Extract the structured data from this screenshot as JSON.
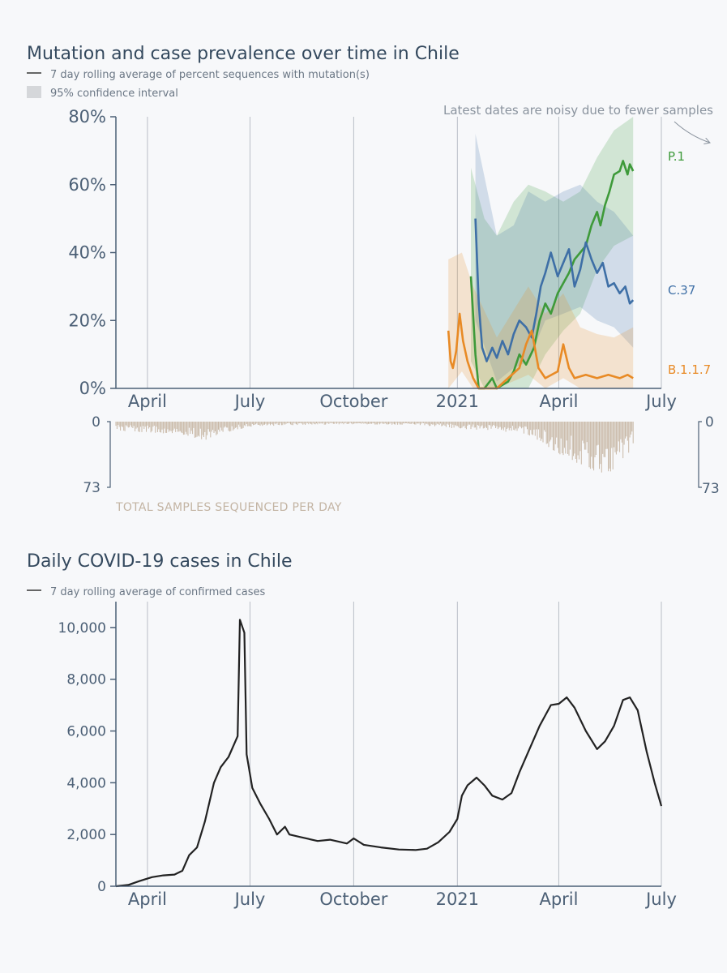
{
  "chart_data": [
    {
      "type": "line",
      "title": "Mutation and case prevalence over time in Chile",
      "legend": [
        "7 day rolling average of percent sequences with mutation(s)",
        "95% confidence interval"
      ],
      "x_ticks": [
        "April",
        "July",
        "October",
        "2021",
        "April",
        "July"
      ],
      "x_tick_dates": [
        "2020-04-01",
        "2020-07-01",
        "2020-10-01",
        "2021-01-01",
        "2021-04-01",
        "2021-07-01"
      ],
      "xlim": [
        "2020-03-04",
        "2021-07-01"
      ],
      "y_ticks": [
        "0%",
        "20%",
        "40%",
        "60%",
        "80%"
      ],
      "ylim": [
        0,
        80
      ],
      "y_unit": "%",
      "annotation": "Latest dates are noisy due to fewer samples",
      "grid": "vertical",
      "series": [
        {
          "name": "P.1",
          "color": "#3e9a3a",
          "points": [
            [
              "2021-01-13",
              33
            ],
            [
              "2021-01-17",
              10
            ],
            [
              "2021-01-20",
              0
            ],
            [
              "2021-01-25",
              0
            ],
            [
              "2021-02-01",
              3
            ],
            [
              "2021-02-05",
              0
            ],
            [
              "2021-02-10",
              1
            ],
            [
              "2021-02-15",
              2
            ],
            [
              "2021-02-20",
              5
            ],
            [
              "2021-02-25",
              10
            ],
            [
              "2021-03-03",
              7
            ],
            [
              "2021-03-10",
              12
            ],
            [
              "2021-03-15",
              20
            ],
            [
              "2021-03-20",
              25
            ],
            [
              "2021-03-25",
              22
            ],
            [
              "2021-03-31",
              28
            ],
            [
              "2021-04-05",
              31
            ],
            [
              "2021-04-10",
              34
            ],
            [
              "2021-04-15",
              38
            ],
            [
              "2021-04-20",
              40
            ],
            [
              "2021-04-25",
              42
            ],
            [
              "2021-04-30",
              48
            ],
            [
              "2021-05-05",
              52
            ],
            [
              "2021-05-08",
              48
            ],
            [
              "2021-05-12",
              54
            ],
            [
              "2021-05-16",
              58
            ],
            [
              "2021-05-20",
              63
            ],
            [
              "2021-05-25",
              64
            ],
            [
              "2021-05-28",
              67
            ],
            [
              "2021-06-01",
              63
            ],
            [
              "2021-06-03",
              66
            ],
            [
              "2021-06-06",
              64
            ]
          ],
          "ci": [
            [
              "2021-01-13",
              8,
              65
            ],
            [
              "2021-01-25",
              0,
              50
            ],
            [
              "2021-02-05",
              0,
              45
            ],
            [
              "2021-02-20",
              0,
              55
            ],
            [
              "2021-03-05",
              0,
              60
            ],
            [
              "2021-03-20",
              10,
              58
            ],
            [
              "2021-04-05",
              17,
              55
            ],
            [
              "2021-04-20",
              22,
              58
            ],
            [
              "2021-05-05",
              35,
              68
            ],
            [
              "2021-05-20",
              42,
              76
            ],
            [
              "2021-06-06",
              45,
              80
            ]
          ]
        },
        {
          "name": "C.37",
          "color": "#3e6fa6",
          "points": [
            [
              "2021-01-17",
              50
            ],
            [
              "2021-01-20",
              25
            ],
            [
              "2021-01-23",
              12
            ],
            [
              "2021-01-27",
              8
            ],
            [
              "2021-02-01",
              12
            ],
            [
              "2021-02-05",
              9
            ],
            [
              "2021-02-10",
              14
            ],
            [
              "2021-02-15",
              10
            ],
            [
              "2021-02-20",
              16
            ],
            [
              "2021-02-25",
              20
            ],
            [
              "2021-03-03",
              18
            ],
            [
              "2021-03-08",
              15
            ],
            [
              "2021-03-12",
              22
            ],
            [
              "2021-03-16",
              30
            ],
            [
              "2021-03-20",
              34
            ],
            [
              "2021-03-25",
              40
            ],
            [
              "2021-03-31",
              33
            ],
            [
              "2021-04-05",
              37
            ],
            [
              "2021-04-10",
              41
            ],
            [
              "2021-04-15",
              30
            ],
            [
              "2021-04-20",
              35
            ],
            [
              "2021-04-25",
              43
            ],
            [
              "2021-04-30",
              38
            ],
            [
              "2021-05-05",
              34
            ],
            [
              "2021-05-10",
              37
            ],
            [
              "2021-05-15",
              30
            ],
            [
              "2021-05-20",
              31
            ],
            [
              "2021-05-25",
              28
            ],
            [
              "2021-05-30",
              30
            ],
            [
              "2021-06-03",
              25
            ],
            [
              "2021-06-06",
              26
            ]
          ],
          "ci": [
            [
              "2021-01-17",
              20,
              75
            ],
            [
              "2021-02-05",
              2,
              45
            ],
            [
              "2021-02-20",
              6,
              48
            ],
            [
              "2021-03-05",
              8,
              58
            ],
            [
              "2021-03-20",
              20,
              55
            ],
            [
              "2021-04-05",
              22,
              58
            ],
            [
              "2021-04-20",
              24,
              60
            ],
            [
              "2021-05-05",
              20,
              55
            ],
            [
              "2021-05-20",
              18,
              52
            ],
            [
              "2021-06-06",
              12,
              45
            ]
          ]
        },
        {
          "name": "B.1.1.7",
          "color": "#e88a25",
          "points": [
            [
              "2020-12-24",
              17
            ],
            [
              "2020-12-26",
              8
            ],
            [
              "2020-12-28",
              6
            ],
            [
              "2020-12-31",
              11
            ],
            [
              "2021-01-03",
              22
            ],
            [
              "2021-01-06",
              14
            ],
            [
              "2021-01-10",
              8
            ],
            [
              "2021-01-15",
              3
            ],
            [
              "2021-01-20",
              0
            ],
            [
              "2021-02-05",
              0
            ],
            [
              "2021-02-15",
              3
            ],
            [
              "2021-02-25",
              6
            ],
            [
              "2021-03-03",
              13
            ],
            [
              "2021-03-08",
              17
            ],
            [
              "2021-03-14",
              6
            ],
            [
              "2021-03-20",
              3
            ],
            [
              "2021-03-31",
              5
            ],
            [
              "2021-04-05",
              13
            ],
            [
              "2021-04-10",
              6
            ],
            [
              "2021-04-15",
              3
            ],
            [
              "2021-04-25",
              4
            ],
            [
              "2021-05-05",
              3
            ],
            [
              "2021-05-15",
              4
            ],
            [
              "2021-05-25",
              3
            ],
            [
              "2021-06-01",
              4
            ],
            [
              "2021-06-06",
              3
            ]
          ],
          "ci": [
            [
              "2020-12-24",
              0,
              38
            ],
            [
              "2021-01-05",
              5,
              40
            ],
            [
              "2021-01-15",
              0,
              30
            ],
            [
              "2021-02-05",
              0,
              15
            ],
            [
              "2021-03-05",
              4,
              30
            ],
            [
              "2021-03-20",
              0,
              22
            ],
            [
              "2021-04-05",
              3,
              28
            ],
            [
              "2021-04-20",
              0,
              18
            ],
            [
              "2021-05-05",
              0,
              16
            ],
            [
              "2021-05-20",
              0,
              15
            ],
            [
              "2021-06-06",
              0,
              18
            ]
          ]
        }
      ]
    },
    {
      "type": "bar",
      "title": "TOTAL SAMPLES SEQUENCED PER DAY",
      "y_ticks": [
        "0",
        "73"
      ],
      "ylim": [
        0,
        73
      ],
      "orientation": "downward",
      "daily_counts_approx": [
        [
          "2020-03-04",
          10
        ],
        [
          "2020-04-01",
          12
        ],
        [
          "2020-05-01",
          15
        ],
        [
          "2020-05-20",
          22
        ],
        [
          "2020-06-10",
          12
        ],
        [
          "2020-07-01",
          6
        ],
        [
          "2020-08-01",
          4
        ],
        [
          "2020-10-01",
          3
        ],
        [
          "2020-12-01",
          4
        ],
        [
          "2021-01-01",
          8
        ],
        [
          "2021-02-01",
          10
        ],
        [
          "2021-03-01",
          14
        ],
        [
          "2021-03-20",
          26
        ],
        [
          "2021-04-05",
          40
        ],
        [
          "2021-04-20",
          50
        ],
        [
          "2021-05-05",
          62
        ],
        [
          "2021-05-20",
          56
        ],
        [
          "2021-06-06",
          28
        ]
      ],
      "color": "#c8b8a6"
    },
    {
      "type": "line",
      "title": "Daily COVID-19 cases in Chile",
      "legend": [
        "7 day rolling average of confirmed cases"
      ],
      "x_ticks": [
        "April",
        "July",
        "October",
        "2021",
        "April",
        "July"
      ],
      "x_tick_dates": [
        "2020-04-01",
        "2020-07-01",
        "2020-10-01",
        "2021-01-01",
        "2021-04-01",
        "2021-07-01"
      ],
      "xlim": [
        "2020-03-04",
        "2021-07-01"
      ],
      "y_ticks": [
        "0",
        "2,000",
        "4,000",
        "6,000",
        "8,000",
        "10,000"
      ],
      "ylim": [
        0,
        11000
      ],
      "grid": "vertical",
      "series": [
        {
          "color": "#222222",
          "points": [
            [
              "2020-03-04",
              0
            ],
            [
              "2020-03-15",
              50
            ],
            [
              "2020-03-25",
              200
            ],
            [
              "2020-04-05",
              350
            ],
            [
              "2020-04-15",
              420
            ],
            [
              "2020-04-25",
              450
            ],
            [
              "2020-05-02",
              600
            ],
            [
              "2020-05-08",
              1200
            ],
            [
              "2020-05-15",
              1500
            ],
            [
              "2020-05-22",
              2500
            ],
            [
              "2020-05-30",
              4000
            ],
            [
              "2020-06-05",
              4600
            ],
            [
              "2020-06-12",
              5000
            ],
            [
              "2020-06-20",
              5800
            ],
            [
              "2020-06-22",
              10300
            ],
            [
              "2020-06-26",
              9800
            ],
            [
              "2020-06-28",
              5100
            ],
            [
              "2020-07-03",
              3800
            ],
            [
              "2020-07-10",
              3200
            ],
            [
              "2020-07-18",
              2600
            ],
            [
              "2020-07-25",
              2000
            ],
            [
              "2020-08-01",
              2300
            ],
            [
              "2020-08-05",
              2000
            ],
            [
              "2020-08-15",
              1900
            ],
            [
              "2020-08-30",
              1750
            ],
            [
              "2020-09-10",
              1800
            ],
            [
              "2020-09-25",
              1650
            ],
            [
              "2020-10-01",
              1850
            ],
            [
              "2020-10-10",
              1600
            ],
            [
              "2020-10-25",
              1500
            ],
            [
              "2020-11-10",
              1420
            ],
            [
              "2020-11-25",
              1400
            ],
            [
              "2020-12-05",
              1450
            ],
            [
              "2020-12-15",
              1700
            ],
            [
              "2020-12-25",
              2100
            ],
            [
              "2021-01-01",
              2600
            ],
            [
              "2021-01-05",
              3500
            ],
            [
              "2021-01-10",
              3900
            ],
            [
              "2021-01-18",
              4200
            ],
            [
              "2021-01-25",
              3900
            ],
            [
              "2021-02-01",
              3500
            ],
            [
              "2021-02-10",
              3350
            ],
            [
              "2021-02-18",
              3600
            ],
            [
              "2021-02-25",
              4400
            ],
            [
              "2021-03-05",
              5200
            ],
            [
              "2021-03-15",
              6200
            ],
            [
              "2021-03-25",
              7000
            ],
            [
              "2021-04-01",
              7050
            ],
            [
              "2021-04-08",
              7300
            ],
            [
              "2021-04-15",
              6900
            ],
            [
              "2021-04-25",
              6000
            ],
            [
              "2021-05-05",
              5300
            ],
            [
              "2021-05-12",
              5600
            ],
            [
              "2021-05-20",
              6200
            ],
            [
              "2021-05-28",
              7200
            ],
            [
              "2021-06-03",
              7300
            ],
            [
              "2021-06-10",
              6800
            ],
            [
              "2021-06-18",
              5200
            ],
            [
              "2021-06-25",
              4000
            ],
            [
              "2021-07-01",
              3100
            ]
          ]
        }
      ]
    }
  ],
  "colors": {
    "background": "#f7f8fa",
    "axis": "#4c6076",
    "grid": "#b9bec6",
    "p1": "#3e9a3a",
    "c37": "#3e6fa6",
    "b117": "#e88a25",
    "bars": "#c8b8a6",
    "cases_line": "#222222"
  }
}
